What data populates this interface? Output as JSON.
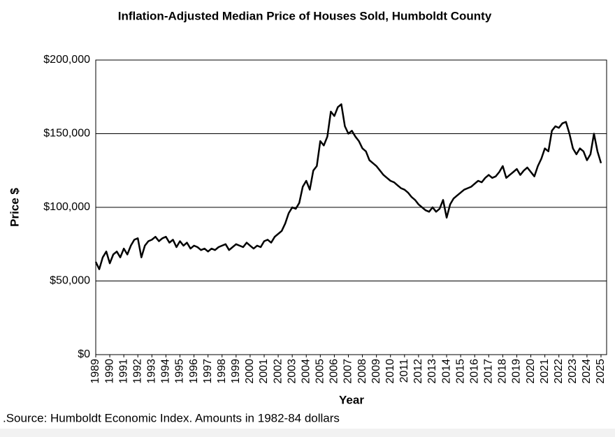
{
  "chart_data": {
    "type": "line",
    "title": "Inflation-Adjusted Median Price of Houses Sold, Humboldt County",
    "y_label": "Price $",
    "x_label": "Year",
    "note": ".Source: Humboldt Economic Index.  Amounts in 1982-84 dollars",
    "x": [
      1989,
      1989.25,
      1989.5,
      1989.75,
      1990,
      1990.25,
      1990.5,
      1990.75,
      1991,
      1991.25,
      1991.5,
      1991.75,
      1992,
      1992.25,
      1992.5,
      1992.75,
      1993,
      1993.25,
      1993.5,
      1993.75,
      1994,
      1994.25,
      1994.5,
      1994.75,
      1995,
      1995.25,
      1995.5,
      1995.75,
      1996,
      1996.25,
      1996.5,
      1996.75,
      1997,
      1997.25,
      1997.5,
      1997.75,
      1998,
      1998.25,
      1998.5,
      1998.75,
      1999,
      1999.25,
      1999.5,
      1999.75,
      2000,
      2000.25,
      2000.5,
      2000.75,
      2001,
      2001.25,
      2001.5,
      2001.75,
      2002,
      2002.25,
      2002.5,
      2002.75,
      2003,
      2003.25,
      2003.5,
      2003.75,
      2004,
      2004.25,
      2004.5,
      2004.75,
      2005,
      2005.25,
      2005.5,
      2005.75,
      2006,
      2006.25,
      2006.5,
      2006.75,
      2007,
      2007.25,
      2007.5,
      2007.75,
      2008,
      2008.25,
      2008.5,
      2008.75,
      2009,
      2009.25,
      2009.5,
      2009.75,
      2010,
      2010.25,
      2010.5,
      2010.75,
      2011,
      2011.25,
      2011.5,
      2011.75,
      2012,
      2012.25,
      2012.5,
      2012.75,
      2013,
      2013.25,
      2013.5,
      2013.75,
      2014,
      2014.25,
      2014.5,
      2014.75,
      2015,
      2015.25,
      2015.5,
      2015.75,
      2016,
      2016.25,
      2016.5,
      2016.75,
      2017,
      2017.25,
      2017.5,
      2017.75,
      2018,
      2018.25,
      2018.5,
      2018.75,
      2019,
      2019.25,
      2019.5,
      2019.75,
      2020,
      2020.25,
      2020.5,
      2020.75,
      2021,
      2021.25,
      2021.5,
      2021.75,
      2022,
      2022.25,
      2022.5,
      2022.75,
      2023,
      2023.25,
      2023.5,
      2023.75,
      2024,
      2024.25,
      2024.5,
      2024.75,
      2025
    ],
    "series": [
      {
        "name": "Median Price",
        "color": "#000000",
        "values": [
          63000,
          58000,
          66000,
          70000,
          62000,
          68000,
          70000,
          66000,
          72000,
          68000,
          74000,
          78000,
          79000,
          66000,
          74000,
          77000,
          78000,
          80000,
          77000,
          79000,
          80000,
          76000,
          78000,
          73000,
          77000,
          74000,
          76000,
          72000,
          74000,
          73000,
          71000,
          72000,
          70000,
          72000,
          71000,
          73000,
          74000,
          75000,
          71000,
          73000,
          75000,
          74000,
          73000,
          76000,
          74000,
          72000,
          74000,
          73000,
          77000,
          78000,
          76000,
          80000,
          82000,
          84000,
          89000,
          96000,
          100000,
          99000,
          103000,
          114000,
          118000,
          112000,
          125000,
          128000,
          145000,
          142000,
          148000,
          165000,
          162000,
          168000,
          170000,
          155000,
          150000,
          152000,
          148000,
          145000,
          140000,
          138000,
          132000,
          130000,
          128000,
          125000,
          122000,
          120000,
          118000,
          117000,
          115000,
          113000,
          112000,
          110000,
          107000,
          105000,
          102000,
          100000,
          98000,
          97000,
          100000,
          97000,
          99000,
          105000,
          93000,
          102000,
          106000,
          108000,
          110000,
          112000,
          113000,
          114000,
          116000,
          118000,
          117000,
          120000,
          122000,
          120000,
          121000,
          124000,
          128000,
          120000,
          122000,
          124000,
          126000,
          122000,
          125000,
          127000,
          124000,
          121000,
          128000,
          133000,
          140000,
          138000,
          152000,
          155000,
          154000,
          157000,
          158000,
          150000,
          140000,
          136000,
          140000,
          138000,
          132000,
          136000,
          150000,
          138000,
          130000
        ]
      }
    ],
    "xlim": [
      1989,
      2025.4
    ],
    "xticks": [
      1989,
      1990,
      1991,
      1992,
      1993,
      1994,
      1995,
      1996,
      1997,
      1998,
      1999,
      2000,
      2001,
      2002,
      2003,
      2004,
      2005,
      2006,
      2007,
      2008,
      2009,
      2010,
      2011,
      2012,
      2013,
      2014,
      2015,
      2016,
      2017,
      2018,
      2019,
      2020,
      2021,
      2022,
      2023,
      2024,
      2025
    ],
    "ylim": [
      0,
      200000
    ],
    "yticks": [
      {
        "value": 0,
        "label": "$0"
      },
      {
        "value": 50000,
        "label": "$50,000"
      },
      {
        "value": 100000,
        "label": "$100,000"
      },
      {
        "value": 150000,
        "label": "$150,000"
      },
      {
        "value": 200000,
        "label": "$200,000"
      }
    ],
    "grid": true
  }
}
